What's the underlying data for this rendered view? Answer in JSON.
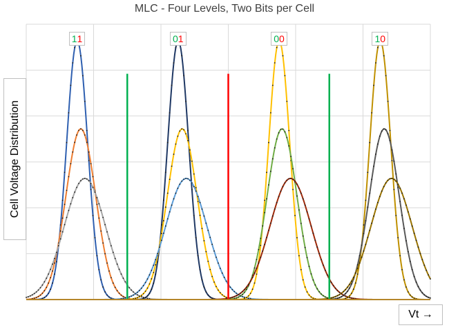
{
  "chart_data": {
    "type": "line",
    "title": "MLC - Four Levels, Two Bits per Cell",
    "ylabel": "Cell Voltage Distribution",
    "xlabel": "Vt →",
    "grid": true,
    "xlim": [
      0,
      100
    ],
    "ylim": [
      0,
      1
    ],
    "levels": [
      {
        "label": "11",
        "bit_colors": [
          "#00b050",
          "#ff0000"
        ],
        "series": [
          {
            "center": 12.6,
            "sigma": 2.6,
            "peak": 0.94,
            "color": "#2e5fb0"
          },
          {
            "center": 13.5,
            "sigma": 3.7,
            "peak": 0.62,
            "color": "#ed7d31"
          },
          {
            "center": 14.5,
            "sigma": 5.1,
            "peak": 0.44,
            "color": "#a5a5a5"
          }
        ]
      },
      {
        "label": "01",
        "bit_colors": [
          "#00b050",
          "#ff0000"
        ],
        "series": [
          {
            "center": 37.6,
            "sigma": 2.6,
            "peak": 0.94,
            "color": "#1f3864"
          },
          {
            "center": 38.6,
            "sigma": 3.7,
            "peak": 0.62,
            "color": "#ffc000"
          },
          {
            "center": 39.6,
            "sigma": 5.1,
            "peak": 0.44,
            "color": "#5b9bd5"
          }
        ]
      },
      {
        "label": "00",
        "bit_colors": [
          "#00b050",
          "#ff0000"
        ],
        "series": [
          {
            "center": 62.6,
            "sigma": 2.6,
            "peak": 0.94,
            "color": "#ffc000"
          },
          {
            "center": 63.3,
            "sigma": 3.7,
            "peak": 0.62,
            "color": "#70ad47"
          },
          {
            "center": 65.4,
            "sigma": 5.1,
            "peak": 0.44,
            "color": "#9e2a0b"
          }
        ]
      },
      {
        "label": "10",
        "bit_colors": [
          "#00b050",
          "#ff0000"
        ],
        "series": [
          {
            "center": 87.6,
            "sigma": 2.6,
            "peak": 0.94,
            "color": "#bf9000"
          },
          {
            "center": 88.6,
            "sigma": 3.7,
            "peak": 0.62,
            "color": "#595959"
          },
          {
            "center": 90.4,
            "sigma": 5.1,
            "peak": 0.44,
            "color": "#997300"
          }
        ]
      }
    ],
    "thresholds": [
      {
        "x": 25,
        "color": "#00b050",
        "top": 0.82
      },
      {
        "x": 50,
        "color": "#ff0000",
        "top": 0.82
      },
      {
        "x": 75,
        "color": "#00b050",
        "top": 0.82
      }
    ]
  }
}
